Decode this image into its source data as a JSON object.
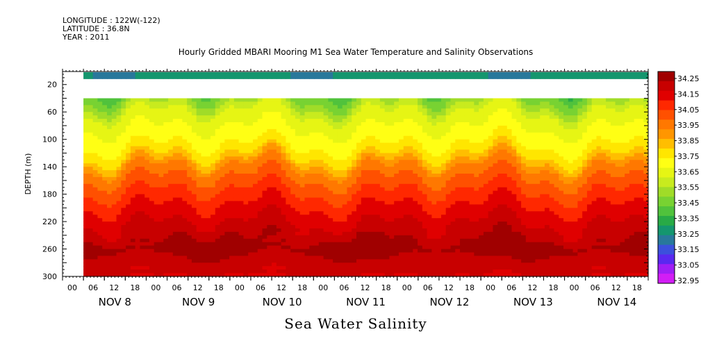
{
  "header": {
    "longitude": "LONGITUDE : 122W(-122)",
    "latitude": "LATITUDE : 36.8N",
    "year": "YEAR : 2011"
  },
  "title": "Hourly Gridded MBARI Mooring M1 Sea Water Temperature and Salinity Observations",
  "bottom_title": "Sea Water Salinity",
  "chart_data": {
    "type": "heatmap",
    "title": "Hourly Gridded MBARI Mooring M1 Sea Water Temperature and Salinity Observations",
    "ylabel": "DEPTH (m)",
    "xlabel": "Sea Water Salinity",
    "x_hour_ticks": [
      "00",
      "06",
      "12",
      "18",
      "00",
      "06",
      "12",
      "18",
      "00",
      "06",
      "12",
      "18",
      "00",
      "06",
      "12",
      "18",
      "00",
      "06",
      "12",
      "18",
      "00",
      "06",
      "12",
      "18",
      "00",
      "06",
      "12",
      "18"
    ],
    "x_day_labels": [
      "NOV  8",
      "NOV  9",
      "NOV 10",
      "NOV 11",
      "NOV 12",
      "NOV 13",
      "NOV 14"
    ],
    "y_ticks": [
      20,
      60,
      100,
      140,
      180,
      220,
      260,
      300
    ],
    "ylim": [
      300,
      1
    ],
    "xlim_hours": [
      0,
      168
    ],
    "data_start_hour": 6,
    "colorbar": {
      "levels": [
        34.25,
        34.15,
        34.05,
        33.95,
        33.85,
        33.75,
        33.65,
        33.55,
        33.45,
        33.35,
        33.25,
        33.15,
        33.05,
        32.95
      ],
      "colors": [
        "#a00000",
        "#c80000",
        "#e00000",
        "#ff2800",
        "#ff5000",
        "#ff7800",
        "#ff9600",
        "#ffbe00",
        "#ffe600",
        "#ffff14",
        "#e6f514",
        "#c8eb1e",
        "#a0dc28",
        "#78d232",
        "#50c23c",
        "#28aa46",
        "#14966e",
        "#28789b",
        "#3c50dc",
        "#5a28f0",
        "#a01ef5",
        "#d21ef5"
      ],
      "labels": [
        "34.25",
        "34.15",
        "34.05",
        "33.95",
        "33.85",
        "33.75",
        "33.65",
        "33.55",
        "33.45",
        "33.35",
        "33.25",
        "33.15",
        "33.05",
        "32.95"
      ]
    },
    "profile": [
      {
        "depth": 10,
        "value": 33.3
      },
      {
        "depth": 40,
        "value": 33.47
      },
      {
        "depth": 60,
        "value": 33.6
      },
      {
        "depth": 80,
        "value": 33.66
      },
      {
        "depth": 100,
        "value": 33.7
      },
      {
        "depth": 120,
        "value": 33.77
      },
      {
        "depth": 140,
        "value": 33.92
      },
      {
        "depth": 160,
        "value": 34.0
      },
      {
        "depth": 180,
        "value": 34.06
      },
      {
        "depth": 200,
        "value": 34.12
      },
      {
        "depth": 220,
        "value": 34.17
      },
      {
        "depth": 240,
        "value": 34.22
      },
      {
        "depth": 260,
        "value": 34.26
      },
      {
        "depth": 280,
        "value": 34.21
      },
      {
        "depth": 300,
        "value": 34.17
      }
    ],
    "legend": "right"
  }
}
